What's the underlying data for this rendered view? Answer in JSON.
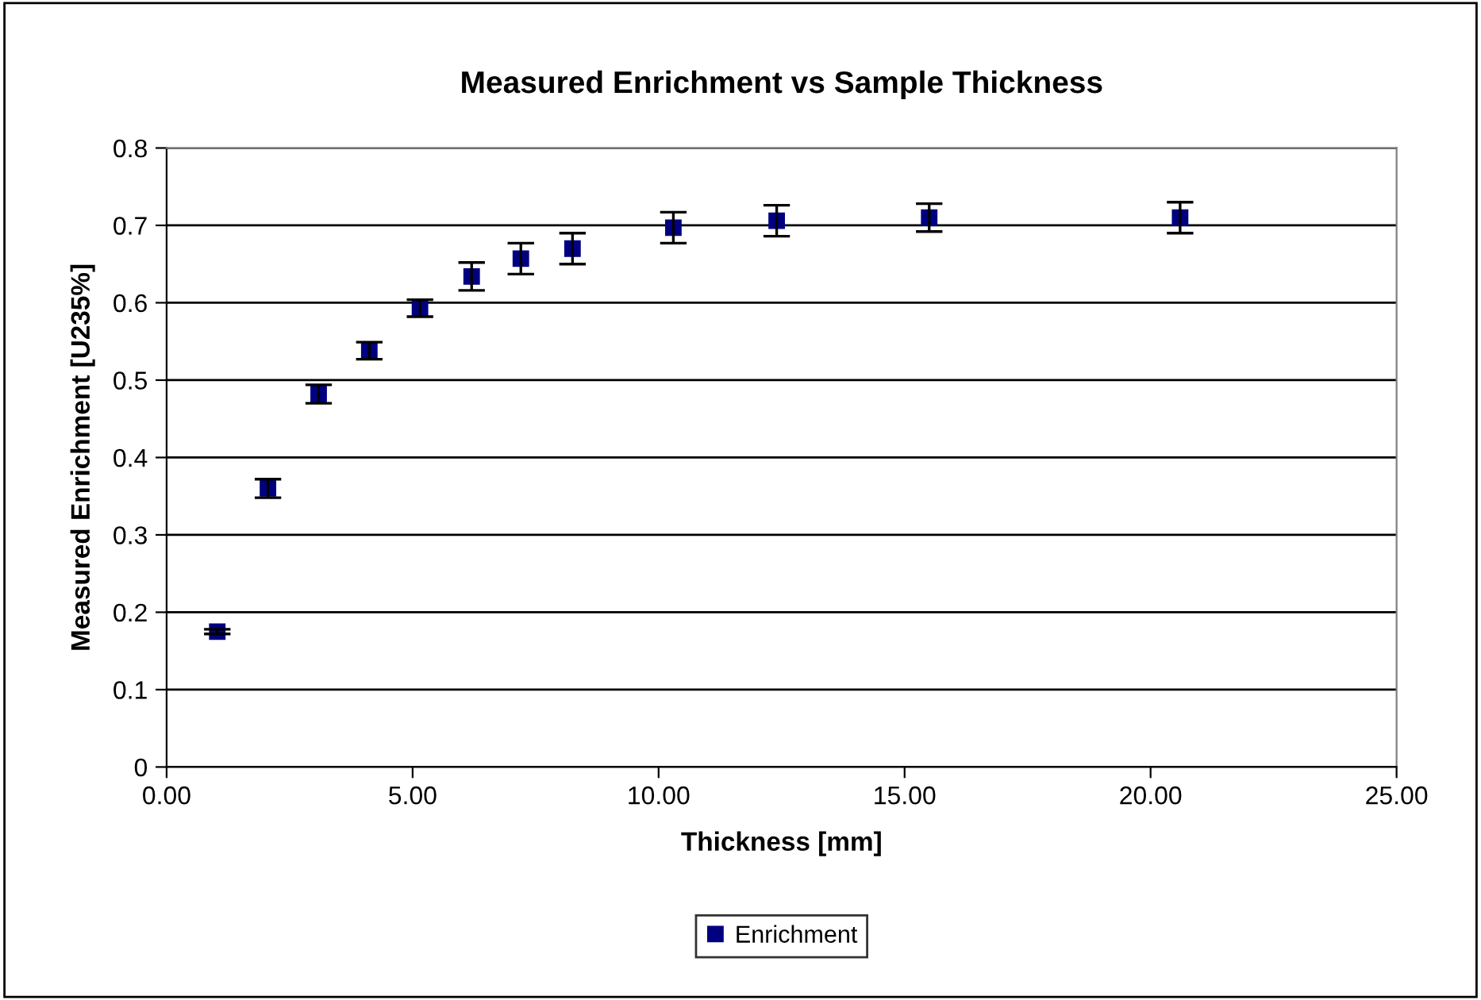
{
  "chart_data": {
    "type": "scatter",
    "title": "Measured Enrichment vs Sample Thickness",
    "xlabel": "Thickness [mm]",
    "ylabel": "Measured Enrichment [U235%]",
    "x": [
      1.03,
      2.06,
      3.09,
      4.12,
      5.15,
      6.2,
      7.2,
      8.25,
      10.3,
      12.4,
      15.5,
      20.6
    ],
    "series": [
      {
        "name": "Enrichment",
        "color": "#000080",
        "values": [
          0.175,
          0.36,
          0.482,
          0.538,
          0.593,
          0.634,
          0.657,
          0.67,
          0.697,
          0.706,
          0.71,
          0.71
        ],
        "errors": [
          0.003,
          0.012,
          0.012,
          0.011,
          0.011,
          0.018,
          0.02,
          0.02,
          0.02,
          0.02,
          0.018,
          0.02
        ]
      }
    ],
    "xlim": [
      0,
      25
    ],
    "xticks": [
      {
        "value": 0,
        "label": "0.00"
      },
      {
        "value": 5,
        "label": "5.00"
      },
      {
        "value": 10,
        "label": "10.00"
      },
      {
        "value": 15,
        "label": "15.00"
      },
      {
        "value": 20,
        "label": "20.00"
      },
      {
        "value": 25,
        "label": "25.00"
      }
    ],
    "ylim": [
      0,
      0.8
    ],
    "yticks": [
      0,
      0.1,
      0.2,
      0.3,
      0.4,
      0.5,
      0.6,
      0.7,
      0.8
    ],
    "grid": "y",
    "legend": "bottom",
    "marker": "square"
  }
}
